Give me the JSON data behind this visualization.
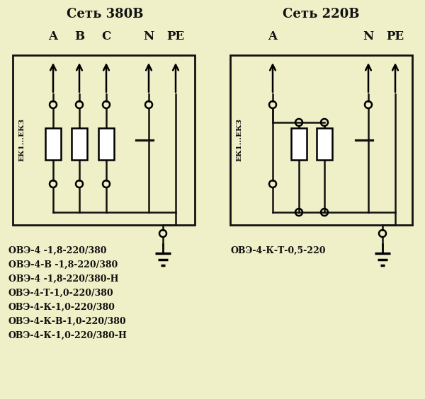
{
  "bg_color": "#f0f0c8",
  "title_380": "Сеть 380В",
  "title_220": "Сеть 220В",
  "labels_380": [
    "A",
    "B",
    "C",
    "N",
    "PE"
  ],
  "labels_220": [
    "A",
    "N",
    "PE"
  ],
  "ek_label": "ЕК1...ЕКЗ",
  "text_lines_left": [
    "ОВЭ-4 -1,8-220/380",
    "ОВЭ-4-В -1,8-220/380",
    "ОВЭ-4 -1,8-220/380-Н",
    "ОВЭ-4-Т-1,0-220/380",
    "ОВЭ-4-К-1,0-220/380",
    "ОВЭ-4-К-В-1,0-220/380",
    "ОВЭ-4-К-1,0-220/380-Н"
  ],
  "text_right": "ОВЭ-4-К-Т-0,5-220",
  "line_color": "#111111",
  "font_size_title": 13,
  "font_size_label": 12,
  "font_size_ek": 7.5,
  "font_size_text": 9.0
}
